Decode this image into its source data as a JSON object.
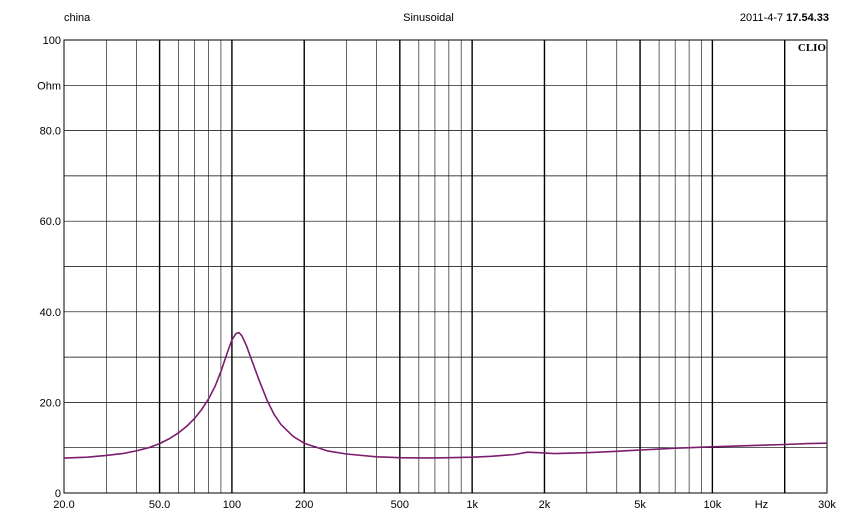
{
  "header": {
    "left": "china",
    "center": "Sinusoidal",
    "right_date": "2011-4-7 ",
    "right_time": "17.54.33"
  },
  "logo": "CLIO",
  "chart_data": {
    "type": "line",
    "title": "Sinusoidal",
    "xlabel": "Hz",
    "ylabel": "Ohm",
    "x_scale": "log",
    "xlim": [
      20,
      30000
    ],
    "ylim": [
      0,
      100
    ],
    "grid": true,
    "x_tick_labels": [
      {
        "value": 20,
        "label": "20.0"
      },
      {
        "value": 50,
        "label": "50.0"
      },
      {
        "value": 100,
        "label": "100"
      },
      {
        "value": 200,
        "label": "200"
      },
      {
        "value": 500,
        "label": "500"
      },
      {
        "value": 1000,
        "label": "1k"
      },
      {
        "value": 2000,
        "label": "2k"
      },
      {
        "value": 5000,
        "label": "5k"
      },
      {
        "value": 10000,
        "label": "10k"
      },
      {
        "value": 30000,
        "label": "30k"
      }
    ],
    "y_tick_labels": [
      {
        "value": 100,
        "label": "100"
      },
      {
        "value": 80,
        "label": "80.0"
      },
      {
        "value": 60,
        "label": "60.0"
      },
      {
        "value": 40,
        "label": "40.0"
      },
      {
        "value": 20,
        "label": "20.0"
      },
      {
        "value": 0,
        "label": "0"
      }
    ],
    "series": [
      {
        "color": "#7b1e6e",
        "points": [
          [
            20,
            7.7
          ],
          [
            25,
            7.9
          ],
          [
            30,
            8.3
          ],
          [
            35,
            8.7
          ],
          [
            40,
            9.3
          ],
          [
            45,
            10.0
          ],
          [
            50,
            10.9
          ],
          [
            55,
            12.0
          ],
          [
            60,
            13.3
          ],
          [
            65,
            14.8
          ],
          [
            70,
            16.5
          ],
          [
            75,
            18.5
          ],
          [
            80,
            20.8
          ],
          [
            85,
            23.5
          ],
          [
            90,
            26.8
          ],
          [
            95,
            30.5
          ],
          [
            100,
            33.8
          ],
          [
            104,
            35.2
          ],
          [
            107,
            35.4
          ],
          [
            110,
            34.7
          ],
          [
            115,
            32.5
          ],
          [
            120,
            29.8
          ],
          [
            130,
            24.8
          ],
          [
            140,
            20.5
          ],
          [
            150,
            17.3
          ],
          [
            160,
            15.1
          ],
          [
            180,
            12.5
          ],
          [
            200,
            11.0
          ],
          [
            250,
            9.3
          ],
          [
            300,
            8.6
          ],
          [
            400,
            8.0
          ],
          [
            500,
            7.8
          ],
          [
            600,
            7.75
          ],
          [
            700,
            7.75
          ],
          [
            800,
            7.8
          ],
          [
            1000,
            7.9
          ],
          [
            1200,
            8.1
          ],
          [
            1500,
            8.5
          ],
          [
            1700,
            9.0
          ],
          [
            1900,
            8.9
          ],
          [
            2200,
            8.7
          ],
          [
            3000,
            8.9
          ],
          [
            4000,
            9.2
          ],
          [
            5000,
            9.5
          ],
          [
            6000,
            9.7
          ],
          [
            7000,
            9.9
          ],
          [
            8000,
            10.0
          ],
          [
            10000,
            10.2
          ],
          [
            15000,
            10.5
          ],
          [
            20000,
            10.7
          ],
          [
            25000,
            10.9
          ],
          [
            30000,
            11.0
          ]
        ]
      }
    ]
  }
}
